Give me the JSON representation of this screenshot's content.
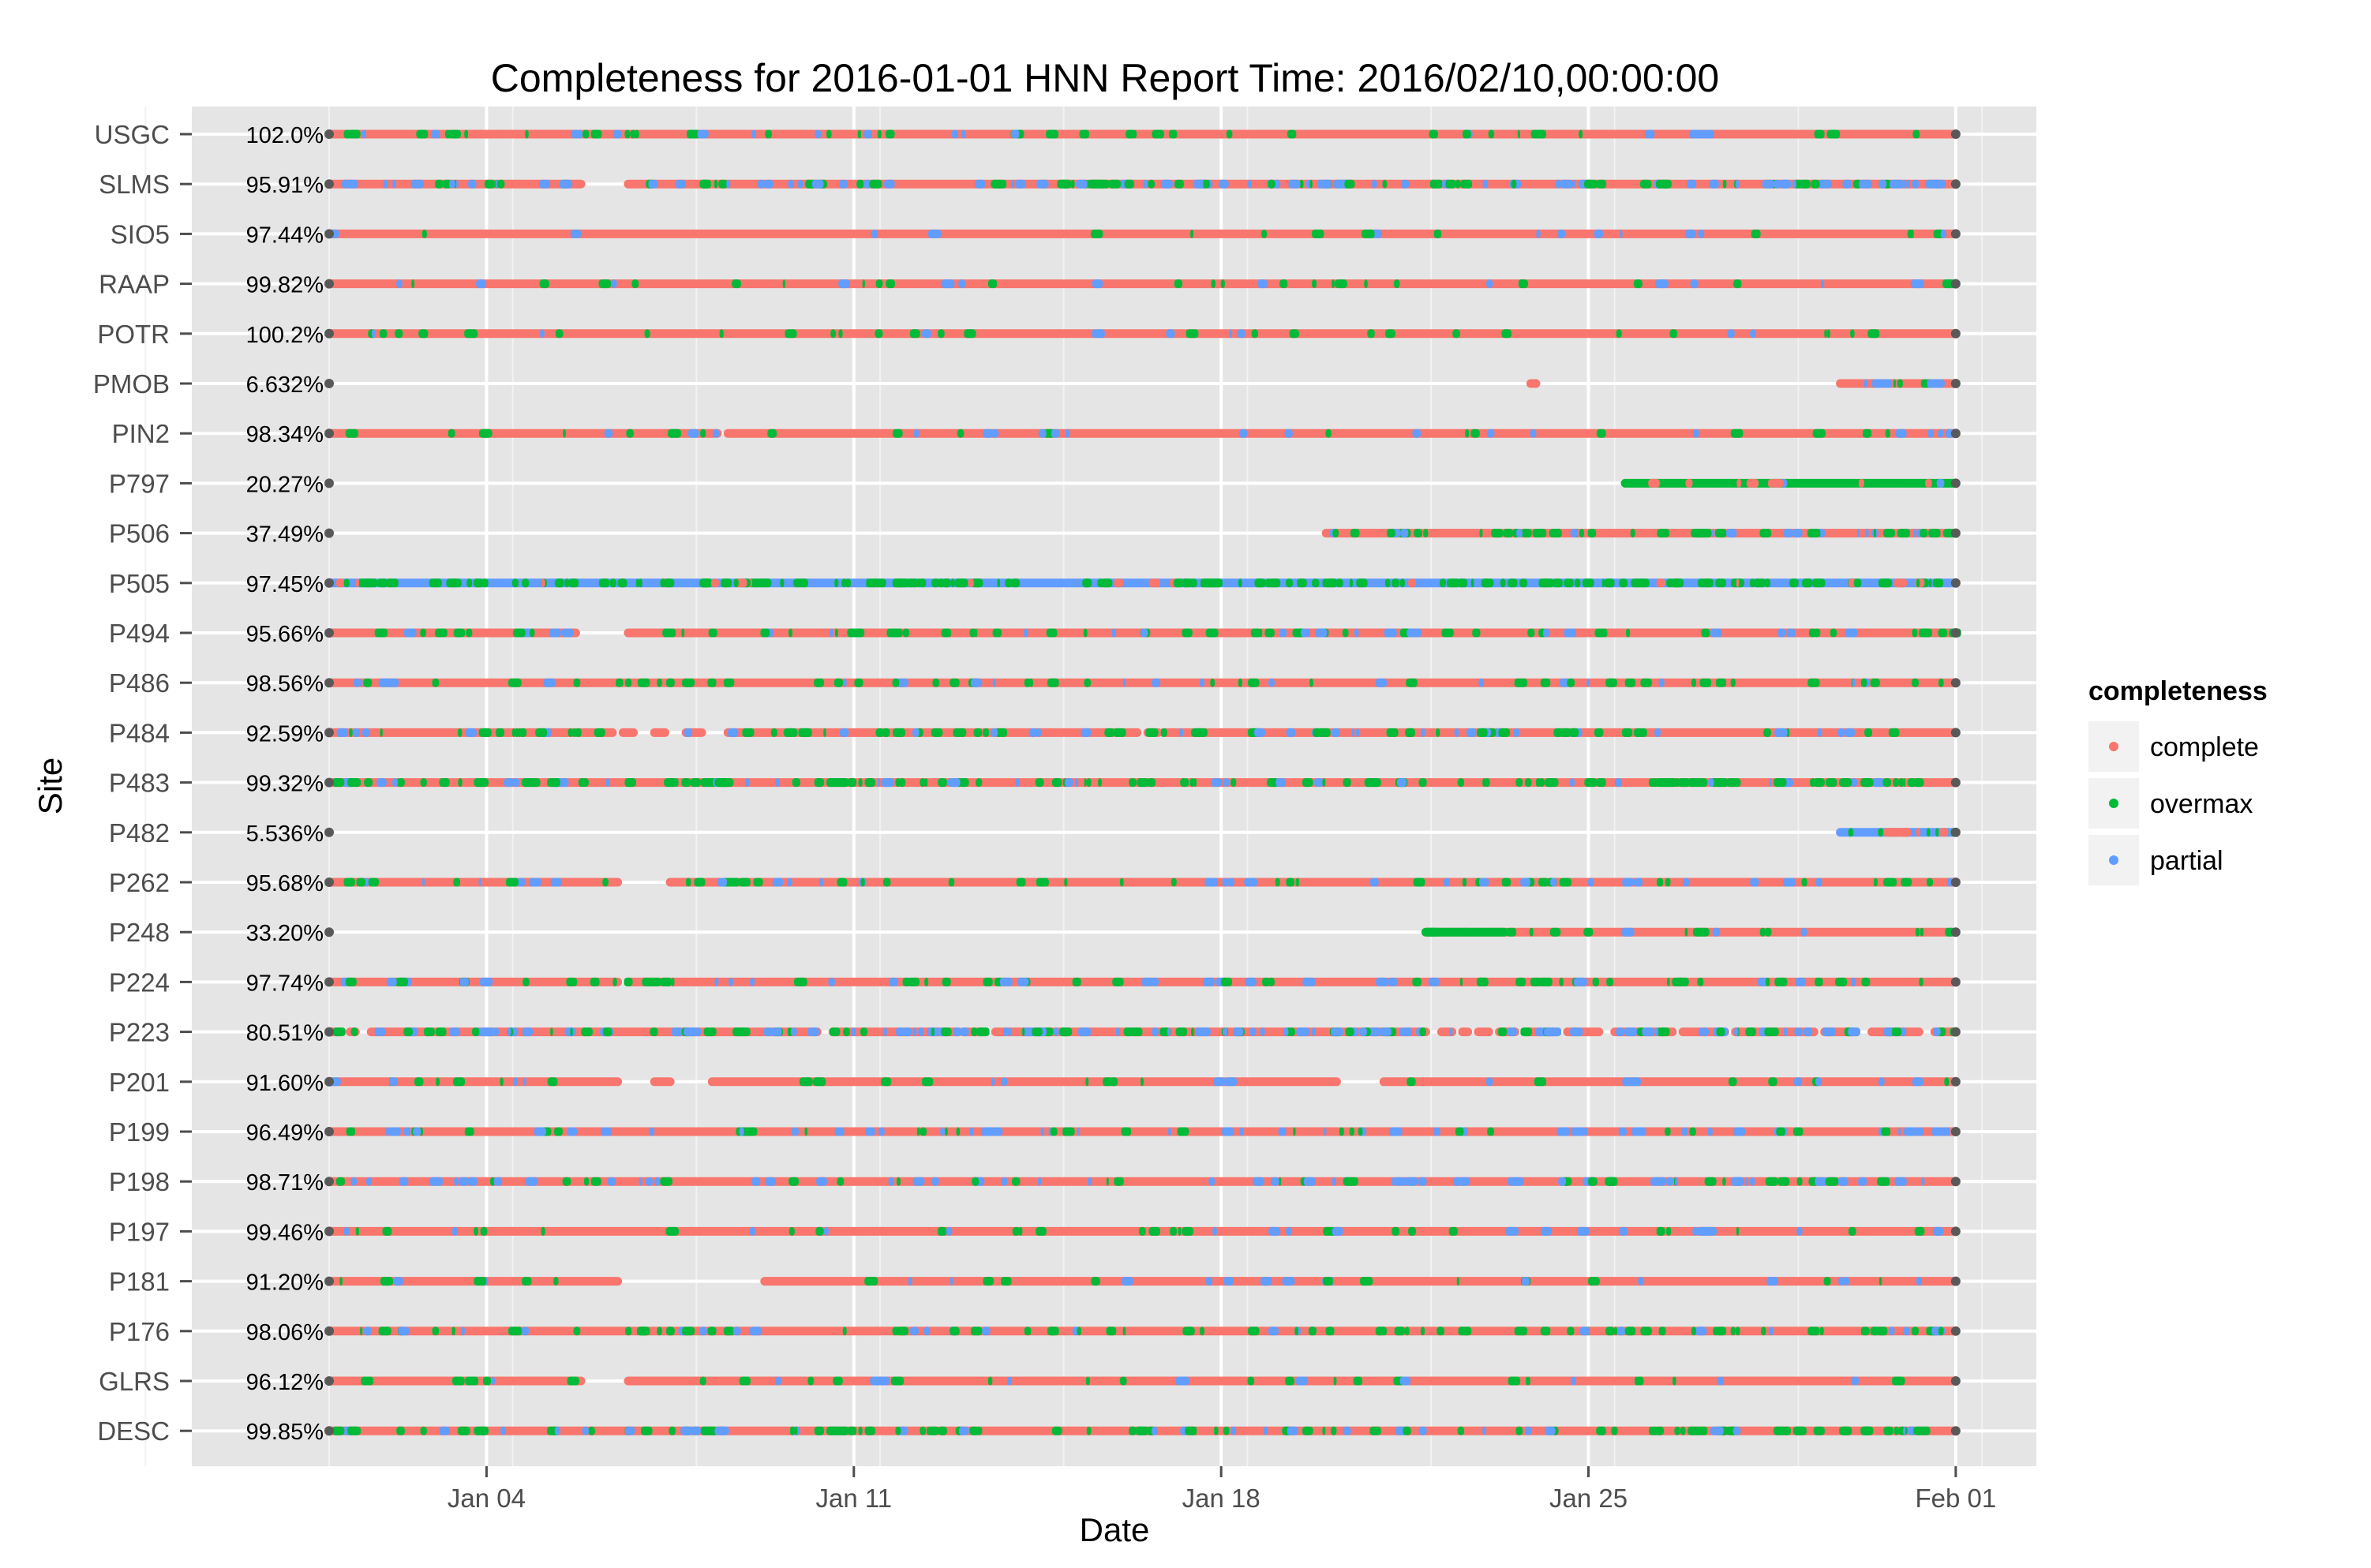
{
  "chart_data": {
    "type": "scatter",
    "title": "Completeness for  2016-01-01 HNN  Report Time:  2016/02/10,00:00:00",
    "xlabel": "Date",
    "ylabel": "Site",
    "x_ticks": [
      "Jan 04",
      "Jan 11",
      "Jan 18",
      "Jan 25",
      "Feb 01"
    ],
    "x_tick_days": [
      3,
      10,
      17,
      24,
      31
    ],
    "xlim_days": [
      -3.5,
      32.7
    ],
    "grid": true,
    "legend": {
      "title": "completeness",
      "position": "right",
      "entries": [
        {
          "label": "complete",
          "color": "#F8766D"
        },
        {
          "label": "overmax",
          "color": "#00BA38"
        },
        {
          "label": "partial",
          "color": "#619CFF"
        }
      ]
    },
    "marker_color": "#595959",
    "sites": [
      {
        "name": "USGC",
        "pct": "102.0%",
        "segments": [
          [
            0,
            31
          ]
        ],
        "dominant": "complete",
        "mix": [
          0.08,
          0.04
        ]
      },
      {
        "name": "SLMS",
        "pct": "95.91%",
        "segments": [
          [
            0,
            4.8
          ],
          [
            5.7,
            31
          ]
        ],
        "dominant": "complete",
        "mix": [
          0.14,
          0.22
        ]
      },
      {
        "name": "SIO5",
        "pct": "97.44%",
        "segments": [
          [
            0,
            31
          ]
        ],
        "dominant": "complete",
        "mix": [
          0.03,
          0.04
        ]
      },
      {
        "name": "RAAP",
        "pct": "99.82%",
        "segments": [
          [
            0,
            31
          ]
        ],
        "dominant": "complete",
        "mix": [
          0.08,
          0.03
        ]
      },
      {
        "name": "POTR",
        "pct": "100.2%",
        "segments": [
          [
            0,
            31
          ]
        ],
        "dominant": "complete",
        "mix": [
          0.07,
          0.02
        ]
      },
      {
        "name": "PMOB",
        "pct": "6.632%",
        "segments": [
          [
            22.9,
            23
          ],
          [
            28.8,
            31
          ]
        ],
        "dominant": "complete",
        "mix": [
          0.05,
          0.1
        ]
      },
      {
        "name": "PIN2",
        "pct": "98.34%",
        "segments": [
          [
            0,
            7.4
          ],
          [
            7.6,
            31
          ]
        ],
        "dominant": "complete",
        "mix": [
          0.04,
          0.03
        ]
      },
      {
        "name": "P797",
        "pct": "20.27%",
        "segments": [
          [
            24.7,
            31
          ]
        ],
        "dominant": "overmax",
        "mix": [
          0.15,
          0.05
        ]
      },
      {
        "name": "P506",
        "pct": "37.49%",
        "segments": [
          [
            19,
            31
          ]
        ],
        "dominant": "complete",
        "mix": [
          0.2,
          0.08
        ]
      },
      {
        "name": "P505",
        "pct": "97.45%",
        "segments": [
          [
            0,
            31
          ]
        ],
        "dominant": "partial",
        "mix": [
          0.05,
          0.35
        ]
      },
      {
        "name": "P494",
        "pct": "95.66%",
        "segments": [
          [
            0,
            4.7
          ],
          [
            5.7,
            31
          ]
        ],
        "dominant": "complete",
        "mix": [
          0.15,
          0.06
        ]
      },
      {
        "name": "P486",
        "pct": "98.56%",
        "segments": [
          [
            0,
            31
          ]
        ],
        "dominant": "complete",
        "mix": [
          0.1,
          0.04
        ]
      },
      {
        "name": "P484",
        "pct": "92.59%",
        "segments": [
          [
            0,
            5.4
          ],
          [
            5.6,
            5.8
          ],
          [
            6.2,
            6.4
          ],
          [
            6.8,
            7.1
          ],
          [
            7.6,
            15.4
          ],
          [
            15.6,
            15.8
          ],
          [
            15.9,
            31
          ]
        ],
        "dominant": "complete",
        "mix": [
          0.18,
          0.08
        ]
      },
      {
        "name": "P483",
        "pct": "99.32%",
        "segments": [
          [
            0,
            31
          ]
        ],
        "dominant": "complete",
        "mix": [
          0.3,
          0.06
        ]
      },
      {
        "name": "P482",
        "pct": "5.536%",
        "segments": [
          [
            28.8,
            31
          ]
        ],
        "dominant": "partial",
        "mix": [
          0.3,
          0.1
        ]
      },
      {
        "name": "P262",
        "pct": "95.68%",
        "segments": [
          [
            0,
            5.5
          ],
          [
            6.5,
            31
          ]
        ],
        "dominant": "complete",
        "mix": [
          0.08,
          0.08
        ]
      },
      {
        "name": "P248",
        "pct": "33.20%",
        "segments": [
          [
            20.9,
            31
          ]
        ],
        "dominant": "complete",
        "mix": [
          0.08,
          0.03
        ],
        "overmax_block": [
          20.9,
          22.4
        ]
      },
      {
        "name": "P224",
        "pct": "97.74%",
        "segments": [
          [
            0,
            5.5
          ],
          [
            5.7,
            31
          ]
        ],
        "dominant": "complete",
        "mix": [
          0.1,
          0.08
        ]
      },
      {
        "name": "P223",
        "pct": "80.51%",
        "segments": [
          [
            0,
            0.2
          ],
          [
            0.4,
            0.5
          ],
          [
            0.8,
            9.3
          ],
          [
            9.6,
            12
          ],
          [
            12.1,
            12.5
          ],
          [
            12.7,
            20.9
          ],
          [
            21.2,
            21.4
          ],
          [
            21.6,
            21.7
          ],
          [
            21.9,
            22.1
          ],
          [
            22.3,
            22.6
          ],
          [
            22.8,
            23.4
          ],
          [
            23.6,
            24.2
          ],
          [
            24.5,
            25.6
          ],
          [
            25.8,
            26.6
          ],
          [
            26.8,
            28.3
          ],
          [
            28.5,
            29.1
          ],
          [
            29.4,
            30.3
          ],
          [
            30.6,
            31
          ]
        ],
        "dominant": "complete",
        "mix": [
          0.15,
          0.3
        ]
      },
      {
        "name": "P201",
        "pct": "91.60%",
        "segments": [
          [
            0,
            5.5
          ],
          [
            6.2,
            6.5
          ],
          [
            7.3,
            19.2
          ],
          [
            20.1,
            31
          ]
        ],
        "dominant": "complete",
        "mix": [
          0.06,
          0.05
        ]
      },
      {
        "name": "P199",
        "pct": "96.49%",
        "segments": [
          [
            0,
            31
          ]
        ],
        "dominant": "complete",
        "mix": [
          0.1,
          0.1
        ]
      },
      {
        "name": "P198",
        "pct": "98.71%",
        "segments": [
          [
            0,
            31
          ]
        ],
        "dominant": "complete",
        "mix": [
          0.08,
          0.12
        ]
      },
      {
        "name": "P197",
        "pct": "99.46%",
        "segments": [
          [
            0,
            31
          ]
        ],
        "dominant": "complete",
        "mix": [
          0.06,
          0.06
        ]
      },
      {
        "name": "P181",
        "pct": "91.20%",
        "segments": [
          [
            0,
            5.5
          ],
          [
            8.3,
            31
          ]
        ],
        "dominant": "complete",
        "mix": [
          0.05,
          0.05
        ]
      },
      {
        "name": "P176",
        "pct": "98.06%",
        "segments": [
          [
            0,
            31
          ]
        ],
        "dominant": "complete",
        "mix": [
          0.14,
          0.05
        ]
      },
      {
        "name": "GLRS",
        "pct": "96.12%",
        "segments": [
          [
            0,
            4.8
          ],
          [
            5.7,
            31
          ]
        ],
        "dominant": "complete",
        "mix": [
          0.06,
          0.04
        ]
      },
      {
        "name": "DESC",
        "pct": "99.85%",
        "segments": [
          [
            0,
            31
          ]
        ],
        "dominant": "complete",
        "mix": [
          0.2,
          0.08
        ]
      }
    ]
  }
}
